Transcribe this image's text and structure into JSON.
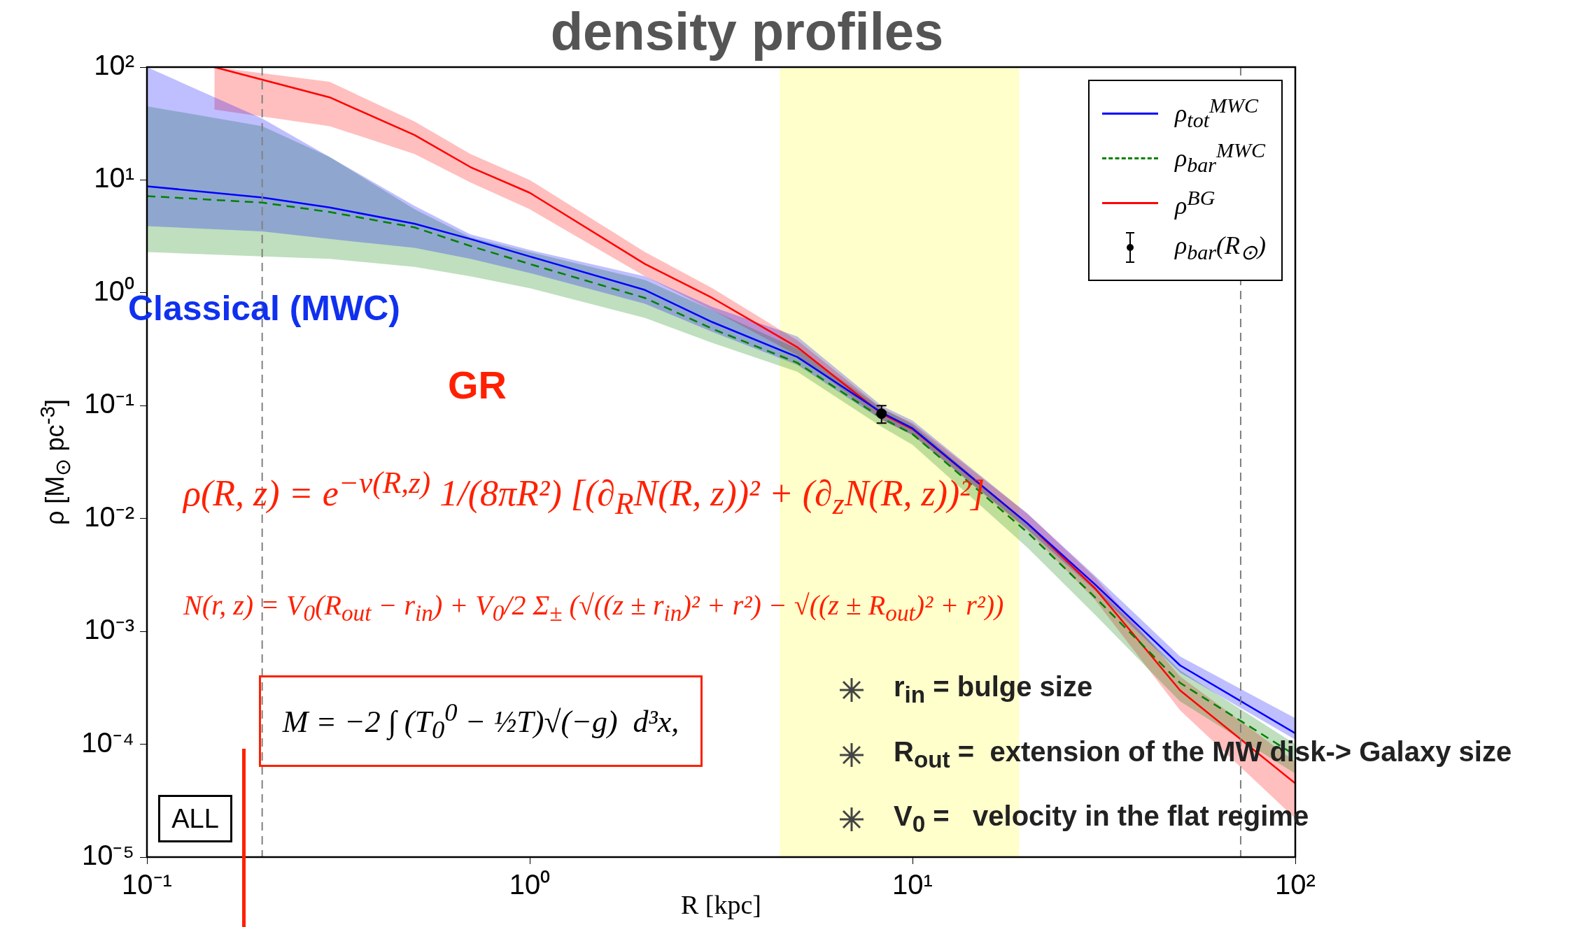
{
  "chart_data": {
    "type": "line",
    "title": "density profiles",
    "xlabel": "R [kpc]",
    "ylabel": "ρ [M$_{⊙}$ pc$^{-3}$]",
    "log": "xy",
    "grid": false,
    "legend": "top right",
    "marker": "none",
    "xlim": [
      0.1,
      100
    ],
    "ylim": [
      1e-05,
      100
    ],
    "xticks": [
      {
        "value": 0.1,
        "label": "10⁻¹"
      },
      {
        "value": 1,
        "label": "10⁰"
      },
      {
        "value": 10,
        "label": "10¹"
      },
      {
        "value": 100,
        "label": "10²"
      }
    ],
    "yticks": [
      {
        "value": 1e-05,
        "label": "10⁻⁵"
      },
      {
        "value": 0.0001,
        "label": "10⁻⁴"
      },
      {
        "value": 0.001,
        "label": "10⁻³"
      },
      {
        "value": 0.01,
        "label": "10⁻²"
      },
      {
        "value": 0.1,
        "label": "10⁻¹"
      },
      {
        "value": 1,
        "label": "10⁰"
      },
      {
        "value": 10,
        "label": "10¹"
      },
      {
        "value": 100,
        "label": "10²"
      }
    ],
    "x": [
      0.1,
      0.2,
      0.3,
      0.5,
      0.7,
      1,
      2,
      3,
      5,
      8.3,
      10,
      20,
      30,
      50,
      100
    ],
    "series": [
      {
        "name": "ρ$_{tot}$$^{MWC}$",
        "color": "#0000ff",
        "line_style": "solid",
        "values": [
          8.8,
          7,
          5.7,
          4.1,
          3,
          2.1,
          1.06,
          0.55,
          0.27,
          0.087,
          0.063,
          0.009,
          0.0026,
          0.0005,
          0.000125
        ],
        "lower": [
          3.9,
          3.5,
          3,
          2.5,
          2,
          1.5,
          0.8,
          0.45,
          0.23,
          0.075,
          0.055,
          0.008,
          0.0023,
          0.00043,
          0.00011
        ],
        "upper": [
          100,
          35,
          16,
          5.9,
          3.3,
          2.4,
          1.4,
          0.75,
          0.41,
          0.1,
          0.074,
          0.011,
          0.0031,
          0.0006,
          0.00017
        ]
      },
      {
        "name": "ρ$_{bar}$$^{MWC}$",
        "color": "#008000",
        "line_style": "dashed",
        "values": [
          7.2,
          6.3,
          5.2,
          3.8,
          2.6,
          1.8,
          0.9,
          0.48,
          0.24,
          0.078,
          0.056,
          0.0075,
          0.002,
          0.00035,
          8e-05
        ],
        "lower": [
          2.3,
          2.1,
          2,
          1.7,
          1.4,
          1.1,
          0.6,
          0.36,
          0.2,
          0.065,
          0.045,
          0.0055,
          0.0014,
          0.00024,
          5.5e-05
        ],
        "upper": [
          45,
          30,
          16,
          5.5,
          3.1,
          2.3,
          1.3,
          0.7,
          0.32,
          0.095,
          0.068,
          0.009,
          0.0025,
          0.00045,
          0.0001
        ]
      },
      {
        "name": "ρ$^{BG}$",
        "color": "#ff0000",
        "line_style": "solid",
        "x": [
          0.15,
          0.3,
          0.5,
          0.7,
          1,
          2,
          3,
          5,
          8.3,
          10,
          20,
          30,
          50,
          100
        ],
        "values": [
          100,
          54,
          25,
          13,
          7.7,
          1.8,
          0.9,
          0.33,
          0.085,
          0.062,
          0.009,
          0.0024,
          0.0003,
          4.5e-05
        ],
        "lower": [
          42,
          30,
          17,
          9.5,
          5.5,
          1.4,
          0.7,
          0.28,
          0.075,
          0.055,
          0.0078,
          0.0019,
          0.0002,
          2.2e-05
        ],
        "upper": [
          100,
          74,
          33,
          17,
          10,
          2.3,
          1.1,
          0.38,
          0.095,
          0.07,
          0.011,
          0.003,
          0.0004,
          7e-05
        ]
      },
      {
        "name": "ρ$_{bar}$(R$_{⊙}$)",
        "type": "scatter",
        "marker": "circle",
        "color": "#000000",
        "x": [
          8.3
        ],
        "values": [
          0.085
        ],
        "errors": [
          0.015
        ]
      }
    ],
    "bands": [
      {
        "axis": "x",
        "from": 4.5,
        "to": 19,
        "color": "#ffffcc"
      }
    ],
    "ref_lines": [
      {
        "axis": "x",
        "value": 0.2,
        "color": "#808080",
        "line_style": "dashed"
      },
      {
        "axis": "x",
        "value": 72,
        "color": "#808080",
        "line_style": "dashed"
      }
    ],
    "annotations": [
      "Classical (MWC)",
      "GR",
      "ρ(R, z) = e$^{−ν(R,z)}$ 1/(8πR²) [(∂$_{R}$N(R, z))² + (∂$_{z}$N(R, z))²]",
      "N(r, z) = V$_{0}$(R$_{out}$ − r$_{in}$) + V$_{0}$/2 Σ$_{±}$ (√((z ± r$_{in}$)² + r²) − √((z ± R$_{out}$)² + r²))",
      "M = −2 ∫ (T$_{0}$$^{0}$ − ½T)√(−g)  d³x,",
      "ALL",
      "r$_{in}$ = bulge size",
      "R$_{out}$ =  extension of the MW disk-> Galaxy size",
      "V$_{0}$ =   velocity in the flat regime"
    ]
  }
}
